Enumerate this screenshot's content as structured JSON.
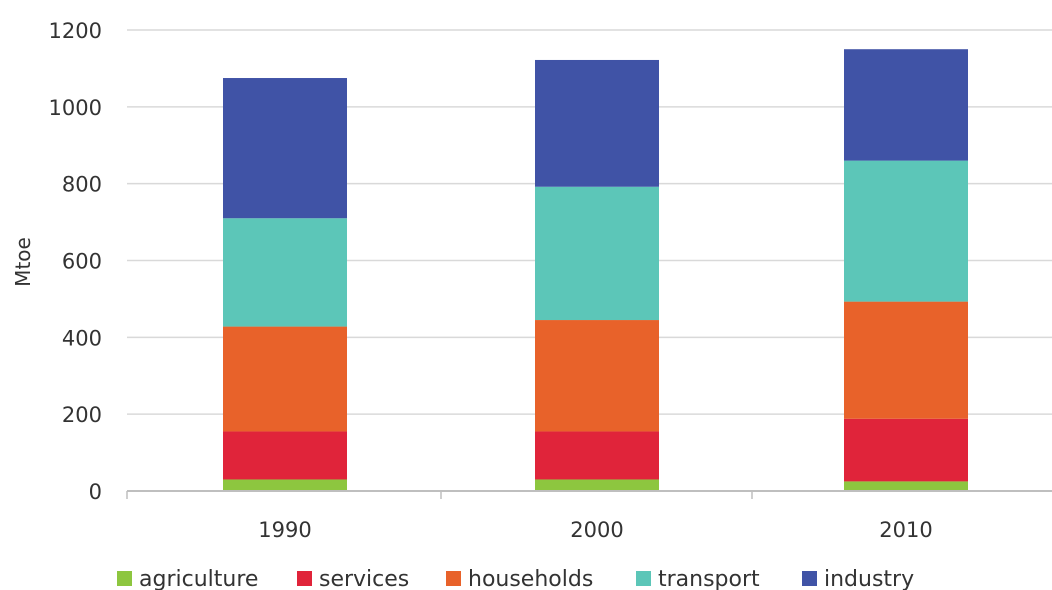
{
  "chart_data": {
    "type": "bar",
    "stacked": true,
    "categories": [
      "1990",
      "2000",
      "2010"
    ],
    "series": [
      {
        "name": "agriculture",
        "color": "#8dc63f",
        "values": [
          30,
          30,
          25
        ]
      },
      {
        "name": "services",
        "color": "#e0243a",
        "values": [
          125,
          125,
          163
        ]
      },
      {
        "name": "households",
        "color": "#e8622a",
        "values": [
          273,
          290,
          305
        ]
      },
      {
        "name": "transport",
        "color": "#5cc6b8",
        "values": [
          282,
          347,
          367
        ]
      },
      {
        "name": "industry",
        "color": "#4053a6",
        "values": [
          365,
          330,
          290
        ]
      }
    ],
    "xlabel": "",
    "ylabel": "Mtoe",
    "ylim": [
      0,
      1200
    ],
    "yticks": [
      "0",
      "200",
      "400",
      "600",
      "800",
      "1000",
      "1200"
    ],
    "grid": true,
    "legend_position": "bottom"
  }
}
